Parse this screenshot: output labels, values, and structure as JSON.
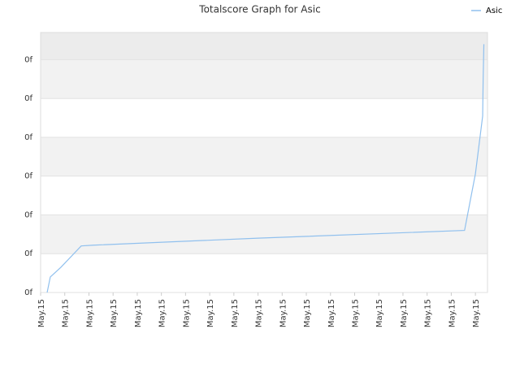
{
  "chart_data": {
    "type": "line",
    "title": "Totalscore Graph for Asic",
    "series": [
      {
        "name": "Asic",
        "color": "#90c0ee",
        "x": [
          0.27,
          0.4,
          0.84,
          1.68,
          2.18,
          9.0,
          17.55,
          18.0,
          18.3,
          18.32,
          18.35
        ],
        "values": [
          0,
          0.4,
          0.65,
          1.2,
          1.22,
          1.4,
          1.6,
          3.06,
          4.55,
          5.5,
          6.4
        ]
      }
    ],
    "xlim": [
      0,
      18.5
    ],
    "xticks": [
      {
        "value": 0,
        "label": "May.15"
      },
      {
        "value": 1,
        "label": "May.15"
      },
      {
        "value": 2,
        "label": "May.15"
      },
      {
        "value": 3,
        "label": "May.15"
      },
      {
        "value": 4,
        "label": "May.15"
      },
      {
        "value": 5,
        "label": "May.15"
      },
      {
        "value": 6,
        "label": "May.15"
      },
      {
        "value": 7,
        "label": "May.15"
      },
      {
        "value": 8,
        "label": "May.15"
      },
      {
        "value": 9,
        "label": "May.15"
      },
      {
        "value": 10,
        "label": "May.15"
      },
      {
        "value": 11,
        "label": "May.15"
      },
      {
        "value": 12,
        "label": "May.15"
      },
      {
        "value": 13,
        "label": "May.15"
      },
      {
        "value": 14,
        "label": "May.15"
      },
      {
        "value": 15,
        "label": "May.15"
      },
      {
        "value": 16,
        "label": "May.15"
      },
      {
        "value": 17,
        "label": "May.15"
      },
      {
        "value": 18,
        "label": "May.15"
      }
    ],
    "ylim": [
      0,
      6.7
    ],
    "yticks": [
      {
        "value": 0,
        "label": "0f"
      },
      {
        "value": 1,
        "label": "0f"
      },
      {
        "value": 2,
        "label": "0f"
      },
      {
        "value": 3,
        "label": "0f"
      },
      {
        "value": 4,
        "label": "0f"
      },
      {
        "value": 5,
        "label": "0f"
      },
      {
        "value": 6,
        "label": "0f"
      }
    ],
    "grid": true,
    "legend": "top-right"
  }
}
